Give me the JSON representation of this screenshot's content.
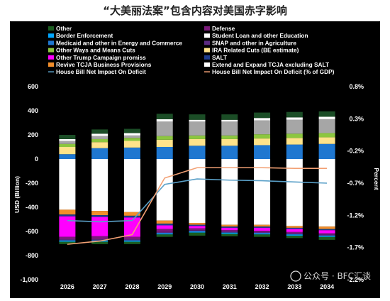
{
  "page": {
    "title": "“大美丽法案”包含内容对美国赤字影响"
  },
  "watermark": {
    "text": "公众号 · BFC汇谈"
  },
  "chart_data": {
    "type": "bar",
    "stacked": true,
    "title": "“大美丽法案”包含内容对美国赤字影响",
    "categories": [
      "2026",
      "2027",
      "2028",
      "2029",
      "2030",
      "2031",
      "2032",
      "2033",
      "2034"
    ],
    "ylabel": "USD (Billion)",
    "ylim": [
      -1000,
      600
    ],
    "yticks": [
      "600",
      "400",
      "200",
      "0",
      "-200",
      "-400",
      "-600",
      "-800",
      "-1,000"
    ],
    "y2label": "Percent",
    "y2lim": [
      -2.2,
      0.8
    ],
    "y2ticks": [
      "0.8%",
      "0.3%",
      "-0.2%",
      "-0.7%",
      "-1.2%",
      "-1.7%",
      "-2.2%"
    ],
    "grid": false,
    "legend_position": "top",
    "series": [
      {
        "key": "other",
        "name": "Other",
        "color": "#1b5e20",
        "values": [
          -20,
          -20,
          -20,
          -20,
          -25,
          -20,
          -20,
          -20,
          -25
        ]
      },
      {
        "key": "defense",
        "name": "Defense",
        "color": "#7b1a7b",
        "values": [
          -20,
          -25,
          -20,
          -25,
          -15,
          -10,
          -10,
          -10,
          -10
        ]
      },
      {
        "key": "border",
        "name": "Border Enforcement",
        "color": "#00a6ff",
        "values": [
          -10,
          -10,
          -10,
          -10,
          -10,
          -10,
          -10,
          -10,
          -10
        ]
      },
      {
        "key": "student",
        "name": "Student Loan and other Education",
        "color": "#ffffff",
        "values": [
          -15,
          -20,
          -20,
          -20,
          -15,
          -15,
          -20,
          -20,
          -20
        ]
      },
      {
        "key": "medicaid",
        "name": "Medicaid and other in Energy and Commerce",
        "color": "#1f77d0",
        "values": [
          40,
          90,
          95,
          100,
          110,
          110,
          115,
          120,
          125
        ]
      },
      {
        "key": "snap",
        "name": "SNAP and other in Agriculture",
        "color": "#5a2a82",
        "values": [
          -10,
          -10,
          -10,
          -10,
          -10,
          -10,
          -10,
          -10,
          -10
        ]
      },
      {
        "key": "ways",
        "name": "Other Ways and Means Cuts",
        "color": "#8cc63f",
        "values": [
          -25,
          -25,
          -25,
          -30,
          -30,
          -30,
          -35,
          -35,
          -35
        ]
      },
      {
        "key": "ira",
        "name": "IRA Related Cuts (BE estimate)",
        "color": "#ffe38a",
        "values": [
          60,
          50,
          55,
          60,
          55,
          55,
          55,
          55,
          55
        ]
      },
      {
        "key": "trump",
        "name": "Other Trump Campaign promiss",
        "color": "#ff00ff",
        "values": [
          -170,
          -160,
          -160,
          -30,
          -20,
          -20,
          -25,
          -25,
          -25
        ]
      },
      {
        "key": "salt",
        "name": "SALT",
        "color": "#1e3c8c",
        "values": [
          -15,
          -15,
          -15,
          -15,
          -10,
          -10,
          -10,
          -10,
          -10
        ]
      },
      {
        "key": "revive",
        "name": "Revive TCJA Business Provisions",
        "color": "#f28e2b",
        "values": [
          -40,
          -35,
          -30,
          -25,
          -15,
          -15,
          -15,
          -15,
          -20
        ]
      },
      {
        "key": "extend",
        "name": "Extend and Expand TCJA excluding SALT",
        "color": "#ffffff",
        "values": [
          -420,
          -430,
          -440,
          -510,
          -530,
          -545,
          -545,
          -555,
          -560
        ]
      },
      {
        "key": "netusd",
        "name": "House Bill Net Impact On Deficit",
        "color": "#5aa0c8",
        "type": "line",
        "axis": "left",
        "values": [
          -510,
          -520,
          -510,
          -210,
          -165,
          -175,
          -180,
          -190,
          -200
        ]
      },
      {
        "key": "netpct",
        "name": "House Bill Net Impact On Deficit (% of GDP)",
        "color": "#f2a074",
        "type": "line",
        "axis": "right",
        "values": [
          -1.65,
          -1.6,
          -1.5,
          -0.62,
          -0.46,
          -0.46,
          -0.46,
          -0.47,
          -0.47
        ]
      }
    ],
    "extra_bars": [
      {
        "key": "gray",
        "color": "#a6a6a6",
        "values": [
          25,
          25,
          20,
          120,
          115,
          115,
          115,
          115,
          115
        ]
      },
      {
        "key": "darkgreen_top",
        "color": "#1b4d26",
        "values": [
          35,
          35,
          35,
          45,
          45,
          45,
          45,
          45,
          45
        ]
      }
    ],
    "legend_rows": [
      [
        "other",
        "defense"
      ],
      [
        "border",
        "student"
      ],
      [
        "medicaid",
        "snap"
      ],
      [
        "ways",
        "ira"
      ],
      [
        "trump",
        "salt"
      ],
      [
        "revive",
        "extend"
      ],
      [
        "netusd",
        "netpct"
      ]
    ]
  }
}
